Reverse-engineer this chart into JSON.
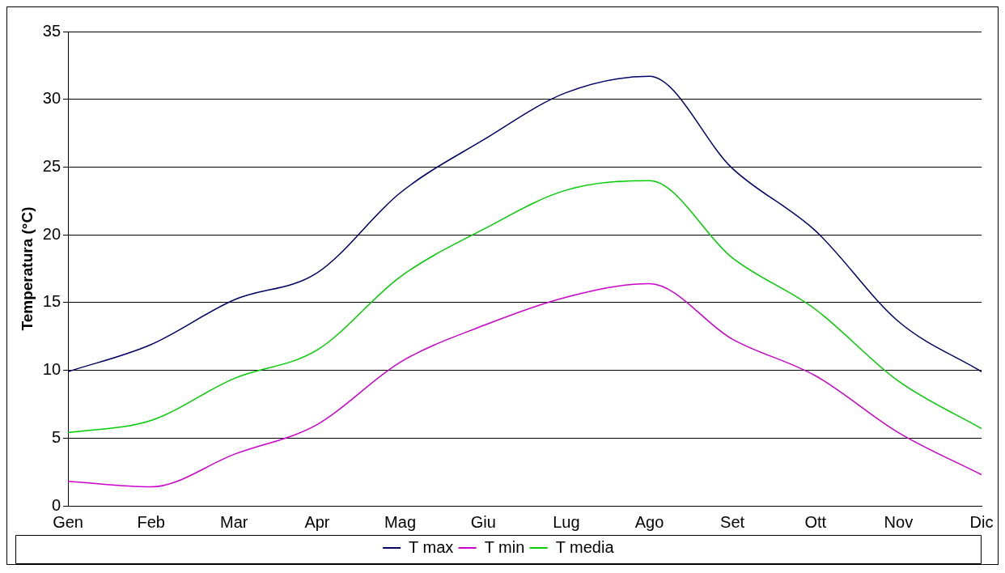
{
  "chart_data": {
    "type": "line",
    "ylabel": "Temperatura (°C)",
    "categories": [
      "Gen",
      "Feb",
      "Mar",
      "Apr",
      "Mag",
      "Giu",
      "Lug",
      "Ago",
      "Set",
      "Ott",
      "Nov",
      "Dic"
    ],
    "series": [
      {
        "name": "T max",
        "color": "#000066",
        "values": [
          9.9,
          11.9,
          15.2,
          17.2,
          23.1,
          27.0,
          30.5,
          31.7,
          24.9,
          20.3,
          13.6,
          9.9
        ]
      },
      {
        "name": "T min",
        "color": "#cc00cc",
        "values": [
          1.8,
          1.4,
          3.8,
          6.0,
          10.6,
          13.3,
          15.4,
          16.4,
          12.3,
          9.6,
          5.4,
          2.3
        ]
      },
      {
        "name": "T media",
        "color": "#00cc00",
        "values": [
          5.4,
          6.3,
          9.4,
          11.5,
          16.9,
          20.4,
          23.3,
          24.0,
          18.3,
          14.5,
          9.2,
          5.7
        ]
      }
    ],
    "ylim": [
      0,
      35
    ],
    "yticks": [
      0,
      5,
      10,
      15,
      20,
      25,
      30,
      35
    ],
    "grid": "y",
    "legend": "bottom",
    "marker": "none",
    "line_style": "solid"
  }
}
